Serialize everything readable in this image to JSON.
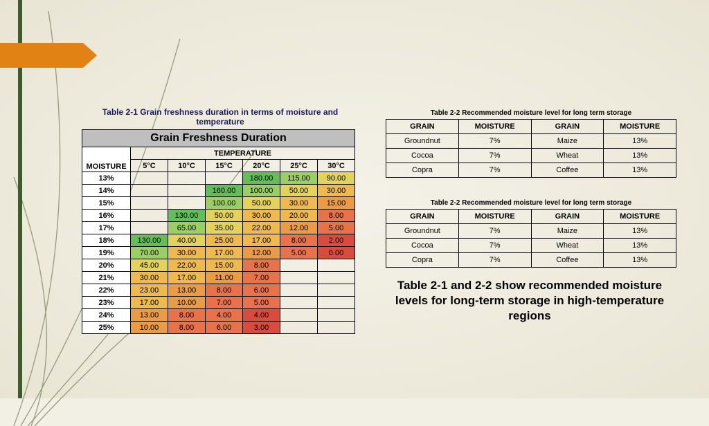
{
  "badge_color": "#e08214",
  "stripe_color": "#3f5b2a",
  "t21": {
    "caption": "Table 2-1 Grain freshness duration in terms of moisture and temperature",
    "title": "Grain Freshness Duration",
    "temp_header": "TEMPERATURE",
    "moisture_header": "MOISTURE",
    "cols": [
      "5°C",
      "10°C",
      "15°C",
      "20°C",
      "25°C",
      "30°C"
    ],
    "rows": [
      {
        "m": "13%",
        "v": [
          "",
          "",
          "",
          "180.00",
          "115.00",
          "90.00"
        ],
        "c": [
          "",
          "",
          "",
          "g1",
          "g2",
          "y1"
        ]
      },
      {
        "m": "14%",
        "v": [
          "",
          "",
          "160.00",
          "100.00",
          "50.00",
          "30.00"
        ],
        "c": [
          "",
          "",
          "g1",
          "g2",
          "y1",
          "o1"
        ]
      },
      {
        "m": "15%",
        "v": [
          "",
          "",
          "100.00",
          "50.00",
          "30.00",
          "15.00"
        ],
        "c": [
          "",
          "",
          "g2",
          "y1",
          "o1",
          "o2"
        ]
      },
      {
        "m": "16%",
        "v": [
          "",
          "130.00",
          "50.00",
          "30.00",
          "20.00",
          "8.00"
        ],
        "c": [
          "",
          "g1",
          "y1",
          "o1",
          "o1",
          "r1"
        ]
      },
      {
        "m": "17%",
        "v": [
          "",
          "65.00",
          "35.00",
          "22.00",
          "12.00",
          "5.00"
        ],
        "c": [
          "",
          "g2",
          "y1",
          "o1",
          "o2",
          "r1"
        ]
      },
      {
        "m": "18%",
        "v": [
          "130.00",
          "40.00",
          "25.00",
          "17.00",
          "8.00",
          "2.00"
        ],
        "c": [
          "g1",
          "y1",
          "o1",
          "o1",
          "r1",
          "r2"
        ]
      },
      {
        "m": "19%",
        "v": [
          "70.00",
          "30.00",
          "17.00",
          "12.00",
          "5.00",
          "0.00"
        ],
        "c": [
          "g2",
          "o1",
          "o1",
          "o2",
          "r1",
          "r2"
        ]
      },
      {
        "m": "20%",
        "v": [
          "45.00",
          "22.00",
          "15.00",
          "8.00",
          "",
          ""
        ],
        "c": [
          "y1",
          "o1",
          "o1",
          "r1",
          "",
          ""
        ]
      },
      {
        "m": "21%",
        "v": [
          "30.00",
          "17.00",
          "11.00",
          "7.00",
          "",
          ""
        ],
        "c": [
          "o1",
          "o1",
          "o2",
          "r1",
          "",
          ""
        ]
      },
      {
        "m": "22%",
        "v": [
          "23.00",
          "13.00",
          "8.00",
          "6.00",
          "",
          ""
        ],
        "c": [
          "o1",
          "o2",
          "r1",
          "r1",
          "",
          ""
        ]
      },
      {
        "m": "23%",
        "v": [
          "17.00",
          "10.00",
          "7.00",
          "5.00",
          "",
          ""
        ],
        "c": [
          "o1",
          "o2",
          "r1",
          "r1",
          "",
          ""
        ]
      },
      {
        "m": "24%",
        "v": [
          "13.00",
          "8.00",
          "4.00",
          "4.00",
          "",
          ""
        ],
        "c": [
          "o2",
          "r1",
          "r1",
          "r2",
          "",
          ""
        ]
      },
      {
        "m": "25%",
        "v": [
          "10.00",
          "8.00",
          "6.00",
          "3.00",
          "",
          ""
        ],
        "c": [
          "o2",
          "r1",
          "r1",
          "r2",
          "",
          ""
        ]
      }
    ],
    "palette": {
      "g1": "#63be5a",
      "g2": "#9bcf63",
      "y1": "#e4d35a",
      "o1": "#f0b94d",
      "o2": "#ec9b45",
      "r1": "#e8724a",
      "r2": "#d94a3f"
    }
  },
  "rt": {
    "caption": "Table 2-2 Recommended moisture level for long term storage",
    "headers": [
      "GRAIN",
      "MOISTURE",
      "GRAIN",
      "MOISTURE"
    ],
    "rows": [
      [
        "Groundnut",
        "7%",
        "Maize",
        "13%"
      ],
      [
        "Cocoa",
        "7%",
        "Wheat",
        "13%"
      ],
      [
        "Copra",
        "7%",
        "Coffee",
        "13%"
      ]
    ]
  },
  "caption_text": "Table 2-1 and 2-2 show recommended moisture levels for long-term storage in high-temperature regions"
}
